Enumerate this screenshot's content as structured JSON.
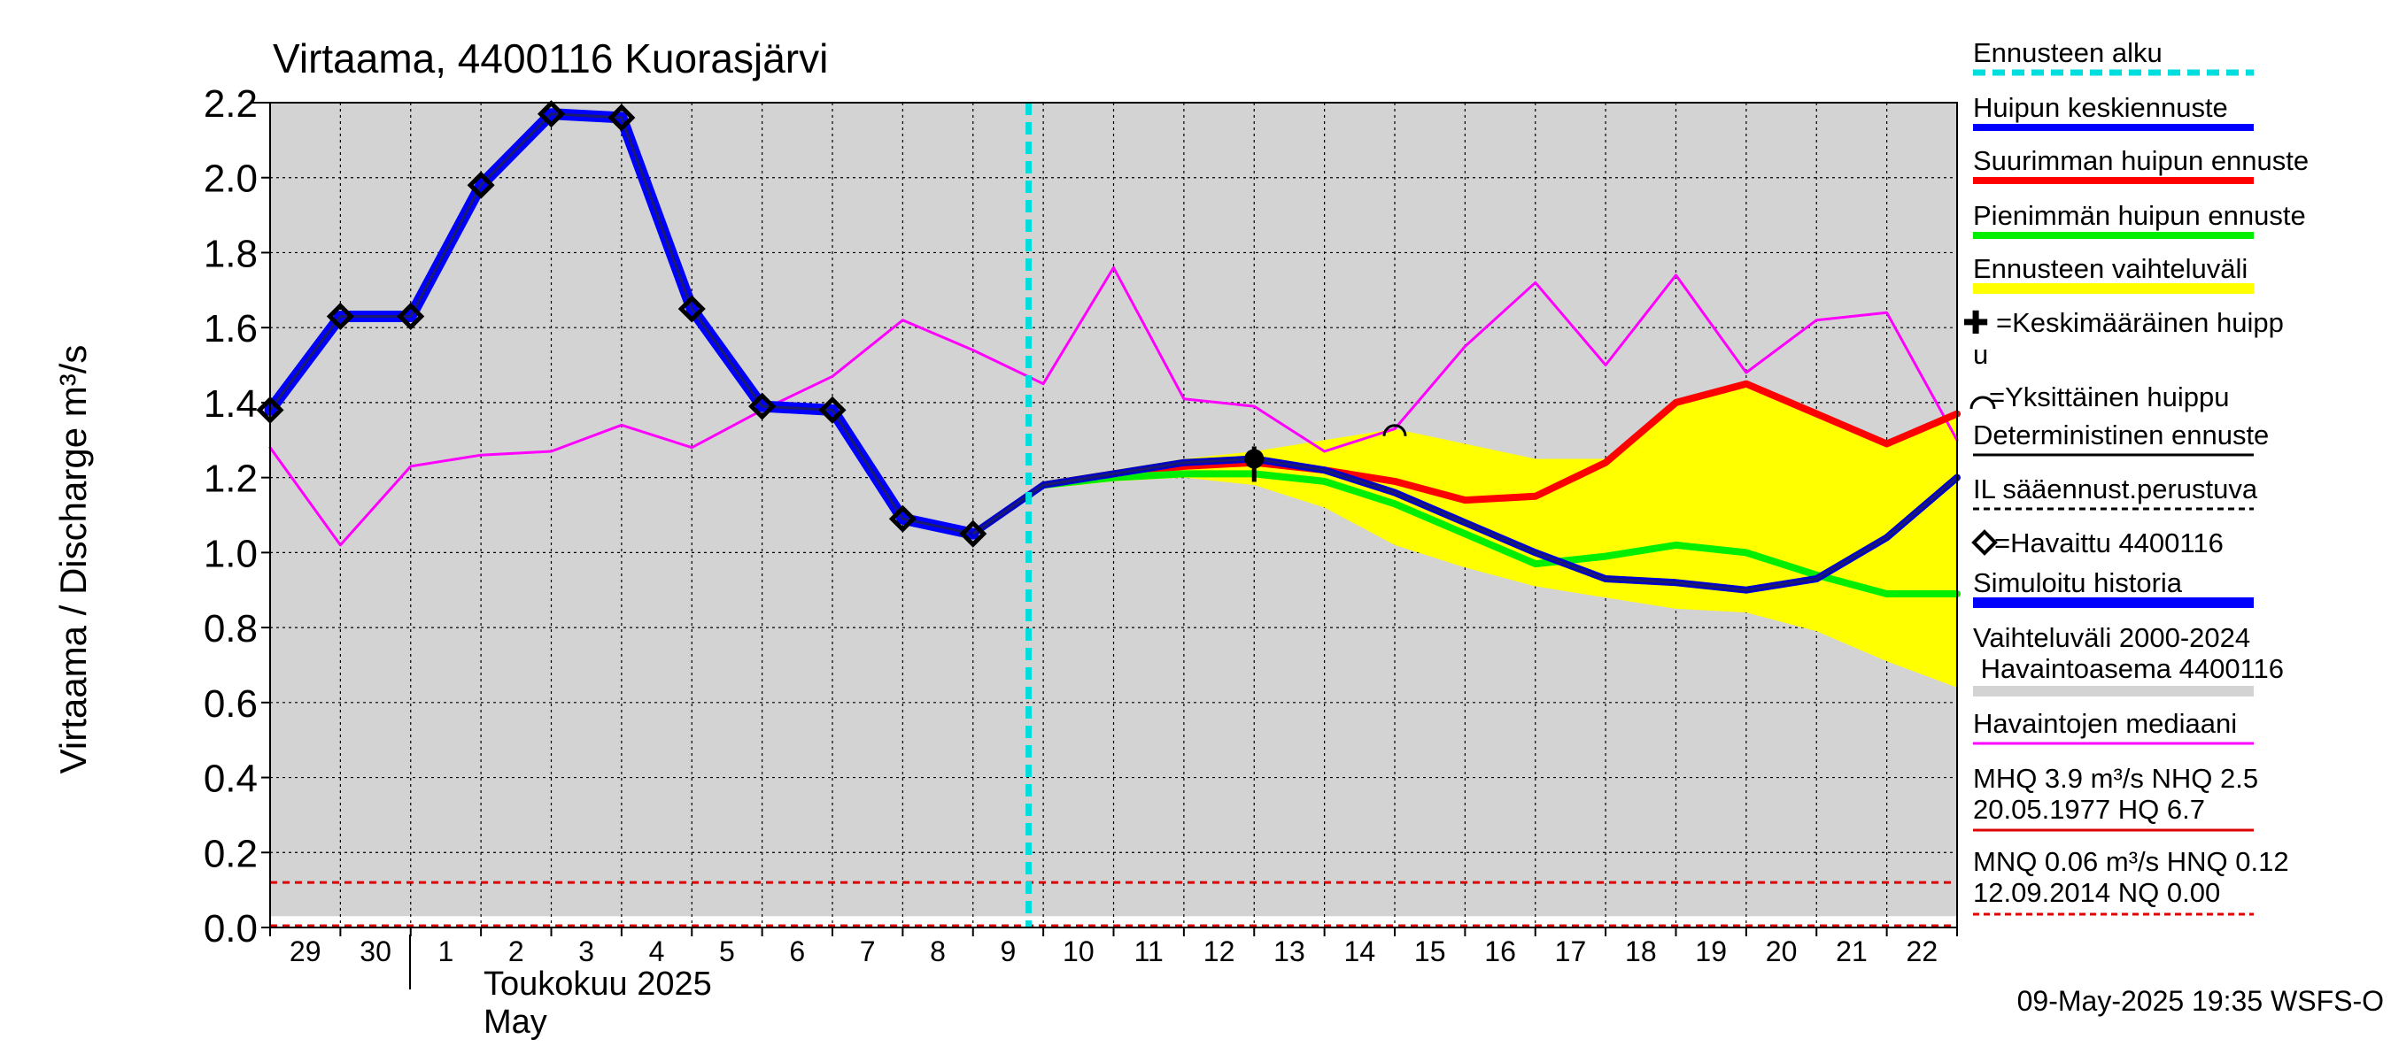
{
  "chart_data": {
    "type": "line",
    "title": "Virtaama, 4400116 Kuorasjärvi",
    "ylabel": "Virtaama / Discharge   m³/s",
    "ylim": [
      0.0,
      2.2
    ],
    "yticks": [
      {
        "v": 0.0,
        "label": "0.0"
      },
      {
        "v": 0.2,
        "label": "0.2"
      },
      {
        "v": 0.4,
        "label": "0.4"
      },
      {
        "v": 0.6,
        "label": "0.6"
      },
      {
        "v": 0.8,
        "label": "0.8"
      },
      {
        "v": 1.0,
        "label": "1.0"
      },
      {
        "v": 1.2,
        "label": "1.2"
      },
      {
        "v": 1.4,
        "label": "1.4"
      },
      {
        "v": 1.6,
        "label": "1.6"
      },
      {
        "v": 1.8,
        "label": "1.8"
      },
      {
        "v": 2.0,
        "label": "2.0"
      },
      {
        "v": 2.2,
        "label": "2.2"
      }
    ],
    "x_dates": [
      "2025-04-29",
      "2025-04-30",
      "2025-05-01",
      "2025-05-02",
      "2025-05-03",
      "2025-05-04",
      "2025-05-05",
      "2025-05-06",
      "2025-05-07",
      "2025-05-08",
      "2025-05-09",
      "2025-05-10",
      "2025-05-11",
      "2025-05-12",
      "2025-05-13",
      "2025-05-14",
      "2025-05-15",
      "2025-05-16",
      "2025-05-17",
      "2025-05-18",
      "2025-05-19",
      "2025-05-20",
      "2025-05-21",
      "2025-05-22",
      "2025-05-23"
    ],
    "xtick_labels": [
      "29",
      "30",
      "1",
      "2",
      "3",
      "4",
      "5",
      "6",
      "7",
      "8",
      "9",
      "10",
      "11",
      "12",
      "13",
      "14",
      "15",
      "16",
      "17",
      "18",
      "19",
      "20",
      "21",
      "22"
    ],
    "month_label_fi": "Toukokuu  2025",
    "month_label_en": "May",
    "forecast_start": "2025-05-09T19:00",
    "series": [
      {
        "name": "Havaittu 4400116",
        "color": "#000000",
        "points": [
          [
            "2025-04-29",
            1.38
          ],
          [
            "2025-04-30",
            1.63
          ],
          [
            "2025-05-01",
            1.63
          ],
          [
            "2025-05-02",
            1.98
          ],
          [
            "2025-05-03",
            2.17
          ],
          [
            "2025-05-04",
            2.16
          ],
          [
            "2025-05-05",
            1.65
          ],
          [
            "2025-05-06",
            1.39
          ],
          [
            "2025-05-07",
            1.38
          ],
          [
            "2025-05-08",
            1.09
          ],
          [
            "2025-05-09",
            1.05
          ]
        ]
      },
      {
        "name": "Simuloitu historia",
        "color": "#0000ff",
        "points": [
          [
            "2025-04-29",
            1.38
          ],
          [
            "2025-04-30",
            1.63
          ],
          [
            "2025-05-01",
            1.63
          ],
          [
            "2025-05-02",
            1.98
          ],
          [
            "2025-05-03",
            2.17
          ],
          [
            "2025-05-04",
            2.16
          ],
          [
            "2025-05-05",
            1.65
          ],
          [
            "2025-05-06",
            1.39
          ],
          [
            "2025-05-07",
            1.38
          ],
          [
            "2025-05-08",
            1.09
          ],
          [
            "2025-05-09",
            1.05
          ]
        ]
      },
      {
        "name": "Havaintojen mediaani",
        "color": "#ff00ff",
        "points": [
          [
            "2025-04-29",
            1.28
          ],
          [
            "2025-04-30",
            1.02
          ],
          [
            "2025-05-01",
            1.23
          ],
          [
            "2025-05-02",
            1.26
          ],
          [
            "2025-05-03",
            1.27
          ],
          [
            "2025-05-04",
            1.34
          ],
          [
            "2025-05-05",
            1.28
          ],
          [
            "2025-05-06",
            1.38
          ],
          [
            "2025-05-07",
            1.47
          ],
          [
            "2025-05-08",
            1.62
          ],
          [
            "2025-05-09",
            1.54
          ],
          [
            "2025-05-10",
            1.45
          ],
          [
            "2025-05-11",
            1.76
          ],
          [
            "2025-05-12",
            1.41
          ],
          [
            "2025-05-13",
            1.39
          ],
          [
            "2025-05-14",
            1.27
          ],
          [
            "2025-05-15",
            1.33
          ],
          [
            "2025-05-16",
            1.55
          ],
          [
            "2025-05-17",
            1.72
          ],
          [
            "2025-05-18",
            1.5
          ],
          [
            "2025-05-19",
            1.74
          ],
          [
            "2025-05-20",
            1.48
          ],
          [
            "2025-05-21",
            1.62
          ],
          [
            "2025-05-22",
            1.64
          ],
          [
            "2025-05-23",
            1.3
          ]
        ]
      },
      {
        "name": "Suurimman huipun ennuste",
        "color": "#ff0000",
        "points": [
          [
            "2025-05-10",
            1.18
          ],
          [
            "2025-05-11",
            1.21
          ],
          [
            "2025-05-12",
            1.23
          ],
          [
            "2025-05-13",
            1.24
          ],
          [
            "2025-05-14",
            1.22
          ],
          [
            "2025-05-15",
            1.19
          ],
          [
            "2025-05-16",
            1.14
          ],
          [
            "2025-05-17",
            1.15
          ],
          [
            "2025-05-18",
            1.24
          ],
          [
            "2025-05-19",
            1.4
          ],
          [
            "2025-05-20",
            1.45
          ],
          [
            "2025-05-21",
            1.37
          ],
          [
            "2025-05-22",
            1.29
          ],
          [
            "2025-05-23",
            1.37
          ]
        ]
      },
      {
        "name": "Pienimmän huipun ennuste",
        "color": "#00ee00",
        "points": [
          [
            "2025-05-10",
            1.18
          ],
          [
            "2025-05-11",
            1.2
          ],
          [
            "2025-05-12",
            1.21
          ],
          [
            "2025-05-13",
            1.21
          ],
          [
            "2025-05-14",
            1.19
          ],
          [
            "2025-05-15",
            1.13
          ],
          [
            "2025-05-16",
            1.05
          ],
          [
            "2025-05-17",
            0.97
          ],
          [
            "2025-05-18",
            0.99
          ],
          [
            "2025-05-19",
            1.02
          ],
          [
            "2025-05-20",
            1.0
          ],
          [
            "2025-05-21",
            0.94
          ],
          [
            "2025-05-22",
            0.89
          ],
          [
            "2025-05-23",
            0.89
          ]
        ]
      },
      {
        "name": "Huipun keskiennuste",
        "color": "#0000cc",
        "points": [
          [
            "2025-05-09",
            1.05
          ],
          [
            "2025-05-10",
            1.18
          ],
          [
            "2025-05-11",
            1.21
          ],
          [
            "2025-05-12",
            1.24
          ],
          [
            "2025-05-13",
            1.25
          ],
          [
            "2025-05-14",
            1.22
          ],
          [
            "2025-05-15",
            1.16
          ],
          [
            "2025-05-16",
            1.08
          ],
          [
            "2025-05-17",
            1.0
          ],
          [
            "2025-05-18",
            0.93
          ],
          [
            "2025-05-19",
            0.92
          ],
          [
            "2025-05-20",
            0.9
          ],
          [
            "2025-05-21",
            0.93
          ],
          [
            "2025-05-22",
            1.04
          ],
          [
            "2025-05-23",
            1.2
          ]
        ]
      }
    ],
    "forecast_range": {
      "name": "Ennusteen vaihteluväli",
      "color": "#ffff00",
      "upper": [
        [
          "2025-05-10",
          1.19
        ],
        [
          "2025-05-11",
          1.22
        ],
        [
          "2025-05-12",
          1.25
        ],
        [
          "2025-05-13",
          1.27
        ],
        [
          "2025-05-14",
          1.3
        ],
        [
          "2025-05-15",
          1.33
        ],
        [
          "2025-05-16",
          1.29
        ],
        [
          "2025-05-17",
          1.25
        ],
        [
          "2025-05-18",
          1.25
        ],
        [
          "2025-05-19",
          1.4
        ],
        [
          "2025-05-20",
          1.45
        ],
        [
          "2025-05-21",
          1.37
        ],
        [
          "2025-05-22",
          1.29
        ],
        [
          "2025-05-23",
          1.38
        ]
      ],
      "lower": [
        [
          "2025-05-10",
          1.17
        ],
        [
          "2025-05-11",
          1.19
        ],
        [
          "2025-05-12",
          1.2
        ],
        [
          "2025-05-13",
          1.18
        ],
        [
          "2025-05-14",
          1.12
        ],
        [
          "2025-05-15",
          1.02
        ],
        [
          "2025-05-16",
          0.96
        ],
        [
          "2025-05-17",
          0.91
        ],
        [
          "2025-05-18",
          0.88
        ],
        [
          "2025-05-19",
          0.85
        ],
        [
          "2025-05-20",
          0.84
        ],
        [
          "2025-05-21",
          0.79
        ],
        [
          "2025-05-22",
          0.71
        ],
        [
          "2025-05-23",
          0.64
        ]
      ]
    },
    "history_range": {
      "name": "Vaihteluväli 2000-2024",
      "color": "#d3d3d3",
      "upper": 2.2,
      "lower": 0.03
    },
    "reference_lines": [
      {
        "value": 0.12,
        "color": "#dd0000",
        "style": "dashed"
      },
      {
        "value": 0.0,
        "color": "#dd0000",
        "style": "dashed"
      }
    ],
    "peak_marker": {
      "date": "2025-05-13",
      "value": 1.25
    },
    "single_peak_marker": {
      "date": "2025-05-15",
      "value": 1.32
    },
    "legend": {
      "forecast_start": "Ennusteen alku",
      "mean_peak": "Huipun keskiennuste",
      "max_peak": "Suurimman huipun ennuste",
      "min_peak": "Pienimmän huipun ennuste",
      "range": "Ennusteen vaihteluväli",
      "mean_marker_1": "=Keskimääräinen huipp",
      "mean_marker_2": "u",
      "single_marker": "=Yksittäinen huippu",
      "deterministic": "Deterministinen ennuste",
      "il_based": "IL sääennust.perustuva",
      "observed": "=Havaittu 4400116",
      "simulated": "Simuloitu historia",
      "hist_range_1": "Vaihteluväli 2000-2024",
      "hist_range_2": " Havaintoasema 4400116",
      "median": "Havaintojen mediaani",
      "mhq_1": "MHQ  3.9 m³/s NHQ  2.5",
      "mhq_2": "20.05.1977 HQ  6.7",
      "mnq_1": "MNQ 0.06 m³/s HNQ 0.12",
      "mnq_2": "12.09.2014 NQ 0.00"
    },
    "footer": "09-May-2025 19:35 WSFS-O"
  }
}
